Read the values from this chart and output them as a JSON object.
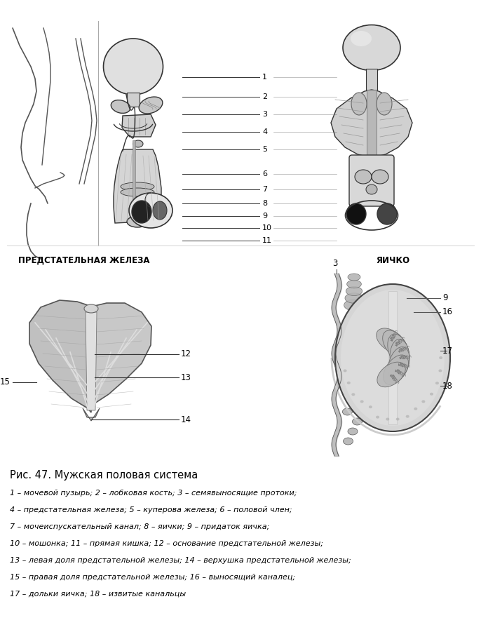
{
  "title": "Рис. 47. Мужская половая система",
  "caption_lines": [
    "1 – мочевой пузырь; 2 – лобковая кость; 3 – семявыносящие протоки;",
    "4 – предстательная железа; 5 – куперова железа; 6 – половой член;",
    "7 – мочеиспускательный канал; 8 – яички; 9 – придаток яичка;",
    "10 – мошонка; 11 – прямая кишка; 12 – основание предстательной железы;",
    "13 – левая доля предстательной железы; 14 – верхушка предстательной железы;",
    "15 – правая доля предстательной железы; 16 – выносящий каналец;",
    "17 – дольки яичка; 18 – извитые канальцы"
  ],
  "prostate_title": "ПРЕДСТАТЕЛЬНАЯ ЖЕЛЕЗА",
  "testis_title": "ЯИЧКО",
  "bg_color": "#ffffff"
}
